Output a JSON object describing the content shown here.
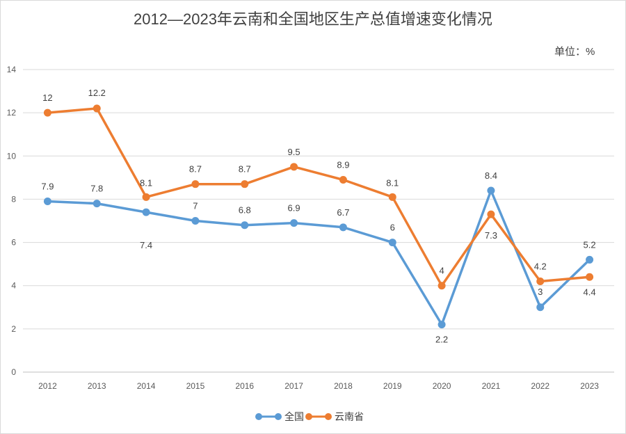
{
  "chart_data": {
    "type": "line",
    "title": "2012—2023年云南和全国地区生产总值增速变化情况",
    "unit_label": "单位：%",
    "xlabel": "",
    "ylabel": "",
    "categories": [
      "2012",
      "2013",
      "2014",
      "2015",
      "2016",
      "2017",
      "2018",
      "2019",
      "2020",
      "2021",
      "2022",
      "2023"
    ],
    "ylim": [
      0,
      14
    ],
    "yticks": [
      0,
      2,
      4,
      6,
      8,
      10,
      12,
      14
    ],
    "grid": true,
    "legend": "bottom",
    "series": [
      {
        "name": "全国",
        "color": "#5B9BD5",
        "values": [
          7.9,
          7.8,
          7.4,
          7,
          6.8,
          6.9,
          6.7,
          6,
          2.2,
          8.4,
          3,
          5.2
        ]
      },
      {
        "name": "云南省",
        "color": "#ED7D31",
        "values": [
          12,
          12.2,
          8.1,
          8.7,
          8.7,
          9.5,
          8.9,
          8.1,
          4,
          7.3,
          4.2,
          4.4
        ]
      }
    ]
  }
}
